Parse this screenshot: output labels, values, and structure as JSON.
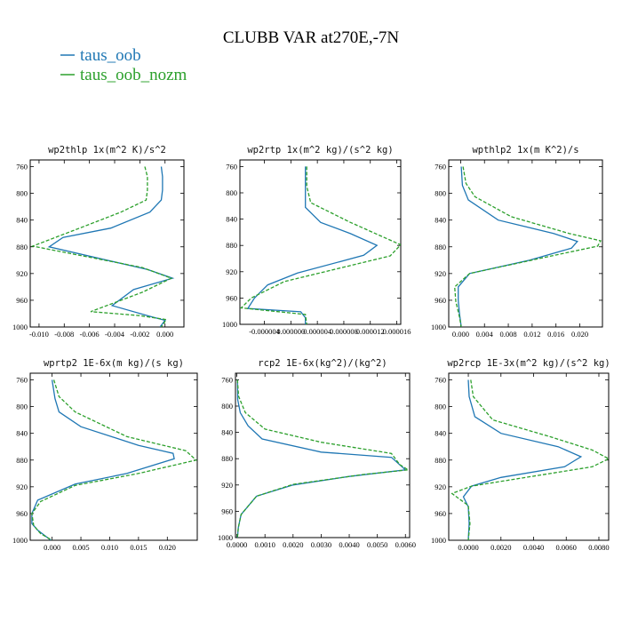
{
  "figure": {
    "title": "CLUBB VAR at270E,-7N",
    "legend": [
      {
        "label": "taus_oob",
        "color": "#1f77b4"
      },
      {
        "label": "taus_oob_nozm",
        "color": "#2ca02c"
      }
    ]
  },
  "chart_data": [
    {
      "type": "line",
      "title": "wp2thlp   1x(m^2 K)/s^2",
      "y_reversed": true,
      "ylim": [
        1000,
        750
      ],
      "yticks": [
        760,
        800,
        840,
        880,
        920,
        960,
        1000
      ],
      "xlim": [
        -0.0107,
        0.0015
      ],
      "xticks": [
        -0.01,
        -0.008,
        -0.006,
        -0.004,
        -0.002,
        0
      ],
      "xtick_labels": [
        "-0.010",
        "-0.008",
        "-0.006",
        "-0.004",
        "-0.002",
        "0.000"
      ],
      "series": [
        {
          "name": "taus_oob",
          "color": "#1f77b4",
          "dash": "",
          "points": [
            [
              -0.0003,
              760
            ],
            [
              -0.0002,
              775
            ],
            [
              -0.0002,
              795
            ],
            [
              -0.0003,
              810
            ],
            [
              -0.0012,
              828
            ],
            [
              -0.0043,
              852
            ],
            [
              -0.0081,
              866
            ],
            [
              -0.0092,
              880
            ],
            [
              -0.0014,
              914
            ],
            [
              0.0006,
              927
            ],
            [
              -0.0025,
              944
            ],
            [
              -0.0042,
              968
            ],
            [
              -0.0012,
              984
            ],
            [
              0.0,
              990
            ],
            [
              -0.0004,
              1000
            ]
          ]
        },
        {
          "name": "taus_oob_nozm",
          "color": "#2ca02c",
          "dash": "4,2",
          "points": [
            [
              -0.0016,
              760
            ],
            [
              -0.0014,
              775
            ],
            [
              -0.0014,
              795
            ],
            [
              -0.0015,
              810
            ],
            [
              -0.0035,
              828
            ],
            [
              -0.0065,
              850
            ],
            [
              -0.0105,
              879
            ],
            [
              -0.0018,
              911
            ],
            [
              0.0005,
              927
            ],
            [
              -0.0018,
              948
            ],
            [
              -0.0059,
              977
            ],
            [
              -0.002,
              983
            ],
            [
              0.0001,
              989
            ],
            [
              -0.0003,
              1000
            ]
          ]
        }
      ]
    },
    {
      "type": "line",
      "title": "wp2rtp   1x(m^2 kg)/(s^2 kg)",
      "y_reversed": true,
      "ylim": [
        1000,
        750
      ],
      "yticks": [
        760,
        800,
        840,
        880,
        920,
        960,
        1000
      ],
      "xlim": [
        -7.7e-06,
        1.66e-05
      ],
      "xticks": [
        -4e-06,
        0,
        4e-06,
        8e-06,
        1.2e-05,
        1.6e-05
      ],
      "xtick_labels": [
        "-0.000004",
        "0.000000",
        "0.000004",
        "0.000008",
        "0.000012",
        "0.000016"
      ],
      "series": [
        {
          "name": "taus_oob",
          "color": "#1f77b4",
          "dash": "",
          "points": [
            [
              2.2e-06,
              760
            ],
            [
              2.2e-06,
              790
            ],
            [
              2.2e-06,
              822
            ],
            [
              4.5e-06,
              845
            ],
            [
              9e-06,
              862
            ],
            [
              1.3e-05,
              880
            ],
            [
              1.1e-05,
              895
            ],
            [
              1e-06,
              922
            ],
            [
              -3.5e-06,
              940
            ],
            [
              -5.5e-06,
              960
            ],
            [
              -6.5e-06,
              976
            ],
            [
              1.5e-06,
              981
            ],
            [
              2.2e-06,
              990
            ],
            [
              2.2e-06,
              1000
            ]
          ]
        },
        {
          "name": "taus_oob_nozm",
          "color": "#2ca02c",
          "dash": "4,2",
          "points": [
            [
              2.4e-06,
              760
            ],
            [
              2.4e-06,
              790
            ],
            [
              3e-06,
              815
            ],
            [
              9e-06,
              845
            ],
            [
              1.66e-05,
              879
            ],
            [
              1.5e-05,
              896
            ],
            [
              -1e-06,
              935
            ],
            [
              -6e-06,
              960
            ],
            [
              -7.5e-06,
              975
            ],
            [
              2.2e-06,
              985
            ],
            [
              2.4e-06,
              1000
            ]
          ]
        }
      ]
    },
    {
      "type": "line",
      "title": "wpthlp2   1x(m K^2)/s",
      "y_reversed": true,
      "ylim": [
        1000,
        750
      ],
      "yticks": [
        760,
        800,
        840,
        880,
        920,
        960,
        1000
      ],
      "xlim": [
        -0.002,
        0.0238
      ],
      "xticks": [
        0,
        0.004,
        0.008,
        0.012,
        0.016,
        0.02
      ],
      "xtick_labels": [
        "0.000",
        "0.004",
        "0.008",
        "0.012",
        "0.016",
        "0.020"
      ],
      "series": [
        {
          "name": "taus_oob",
          "color": "#1f77b4",
          "dash": "",
          "points": [
            [
              0.0001,
              760
            ],
            [
              0.0003,
              788
            ],
            [
              0.0013,
              810
            ],
            [
              0.0063,
              840
            ],
            [
              0.0156,
              860
            ],
            [
              0.0196,
              872
            ],
            [
              0.0186,
              882
            ],
            [
              0.0116,
              900
            ],
            [
              0.0015,
              920
            ],
            [
              -0.0004,
              940
            ],
            [
              -0.0004,
              960
            ],
            [
              -0.0002,
              980
            ],
            [
              0.0001,
              1000
            ]
          ]
        },
        {
          "name": "taus_oob_nozm",
          "color": "#2ca02c",
          "dash": "4,2",
          "points": [
            [
              0.0004,
              760
            ],
            [
              0.0009,
              785
            ],
            [
              0.0024,
              805
            ],
            [
              0.0085,
              835
            ],
            [
              0.0182,
              860
            ],
            [
              0.0235,
              871
            ],
            [
              0.023,
              879
            ],
            [
              0.014,
              896
            ],
            [
              0.0015,
              920
            ],
            [
              -0.001,
              940
            ],
            [
              -0.0008,
              962
            ],
            [
              -0.0002,
              985
            ],
            [
              0.0001,
              1000
            ]
          ]
        }
      ]
    },
    {
      "type": "line",
      "title": "wprtp2   1E-6x(m kg)/(s kg)",
      "y_reversed": true,
      "ylim": [
        1000,
        750
      ],
      "yticks": [
        760,
        800,
        840,
        880,
        920,
        960,
        1000
      ],
      "xlim": [
        -0.0038,
        0.0252
      ],
      "xticks": [
        0,
        0.005,
        0.01,
        0.015,
        0.02
      ],
      "xtick_labels": [
        "0.000",
        "0.005",
        "0.010",
        "0.015",
        "0.020"
      ],
      "series": [
        {
          "name": "taus_oob",
          "color": "#1f77b4",
          "dash": "",
          "points": [
            [
              0.0,
              760
            ],
            [
              0.0005,
              788
            ],
            [
              0.0012,
              808
            ],
            [
              0.005,
              830
            ],
            [
              0.015,
              858
            ],
            [
              0.021,
              870
            ],
            [
              0.0212,
              878
            ],
            [
              0.013,
              900
            ],
            [
              0.004,
              916
            ],
            [
              -0.0025,
              940
            ],
            [
              -0.0035,
              960
            ],
            [
              -0.0035,
              975
            ],
            [
              -0.0025,
              985
            ],
            [
              -0.0002,
              1000
            ]
          ]
        },
        {
          "name": "taus_oob_nozm",
          "color": "#2ca02c",
          "dash": "4,2",
          "points": [
            [
              0.0003,
              760
            ],
            [
              0.0012,
              785
            ],
            [
              0.004,
              808
            ],
            [
              0.013,
              845
            ],
            [
              0.0232,
              866
            ],
            [
              0.025,
              880
            ],
            [
              0.015,
              900
            ],
            [
              0.004,
              918
            ],
            [
              -0.002,
              942
            ],
            [
              -0.0035,
              960
            ],
            [
              -0.0032,
              978
            ],
            [
              -0.002,
              990
            ],
            [
              0.0,
              1000
            ]
          ]
        }
      ]
    },
    {
      "type": "line",
      "title": "rcp2   1E-6x(kg^2)/(kg^2)",
      "y_reversed": true,
      "ylim": [
        1000,
        750
      ],
      "yticks": [
        760,
        800,
        840,
        880,
        920,
        960,
        1000
      ],
      "xlim": [
        -5e-05,
        0.00615
      ],
      "xticks": [
        0,
        0.001,
        0.002,
        0.003,
        0.004,
        0.005,
        0.006
      ],
      "xtick_labels": [
        "0.0000",
        "0.0010",
        "0.0020",
        "0.0030",
        "0.0040",
        "0.0050",
        "0.0060"
      ],
      "series": [
        {
          "name": "taus_oob",
          "color": "#1f77b4",
          "dash": "",
          "points": [
            [
              2e-05,
              760
            ],
            [
              3e-05,
              790
            ],
            [
              0.00012,
              810
            ],
            [
              0.0004,
              830
            ],
            [
              0.0009,
              850
            ],
            [
              0.003,
              870
            ],
            [
              0.0055,
              878
            ],
            [
              0.006,
              897
            ],
            [
              0.004,
              907
            ],
            [
              0.002,
              920
            ],
            [
              0.0007,
              937
            ],
            [
              0.00015,
              965
            ],
            [
              5e-05,
              985
            ],
            [
              2e-05,
              1000
            ]
          ]
        },
        {
          "name": "taus_oob_nozm",
          "color": "#2ca02c",
          "dash": "4,2",
          "points": [
            [
              2e-05,
              760
            ],
            [
              6e-05,
              785
            ],
            [
              0.0003,
              810
            ],
            [
              0.001,
              835
            ],
            [
              0.003,
              855
            ],
            [
              0.0055,
              872
            ],
            [
              0.0058,
              889
            ],
            [
              0.0061,
              897
            ],
            [
              0.0045,
              904
            ],
            [
              0.002,
              919
            ],
            [
              0.0007,
              937
            ],
            [
              0.00015,
              965
            ],
            [
              5e-05,
              985
            ],
            [
              2e-05,
              1000
            ]
          ]
        }
      ]
    },
    {
      "type": "line",
      "title": "wp2rcp   1E-3x(m^2 kg)/(s^2 kg)",
      "y_reversed": true,
      "ylim": [
        1000,
        750
      ],
      "yticks": [
        760,
        800,
        840,
        880,
        920,
        960,
        1000
      ],
      "xlim": [
        -0.0012,
        0.0086
      ],
      "xticks": [
        0,
        0.002,
        0.004,
        0.006,
        0.008
      ],
      "xtick_labels": [
        "0.0000",
        "0.0020",
        "0.0040",
        "0.0060",
        "0.0080"
      ],
      "series": [
        {
          "name": "taus_oob",
          "color": "#1f77b4",
          "dash": "",
          "points": [
            [
              0.0,
              760
            ],
            [
              5e-05,
              785
            ],
            [
              0.0004,
              815
            ],
            [
              0.002,
              840
            ],
            [
              0.0055,
              860
            ],
            [
              0.0069,
              875
            ],
            [
              0.0059,
              890
            ],
            [
              0.002,
              906
            ],
            [
              0.0002,
              919
            ],
            [
              -0.0003,
              935
            ],
            [
              0.0,
              950
            ],
            [
              5e-05,
              975
            ],
            [
              0.0,
              1000
            ]
          ]
        },
        {
          "name": "taus_oob_nozm",
          "color": "#2ca02c",
          "dash": "4,2",
          "points": [
            [
              0.00015,
              760
            ],
            [
              0.0003,
              785
            ],
            [
              0.0015,
              820
            ],
            [
              0.005,
              845
            ],
            [
              0.0076,
              865
            ],
            [
              0.0086,
              878
            ],
            [
              0.0076,
              890
            ],
            [
              0.003,
              908
            ],
            [
              0.0002,
              919
            ],
            [
              -0.001,
              930
            ],
            [
              0.0,
              948
            ],
            [
              0.0001,
              975
            ],
            [
              0.0,
              1000
            ]
          ]
        }
      ]
    }
  ]
}
